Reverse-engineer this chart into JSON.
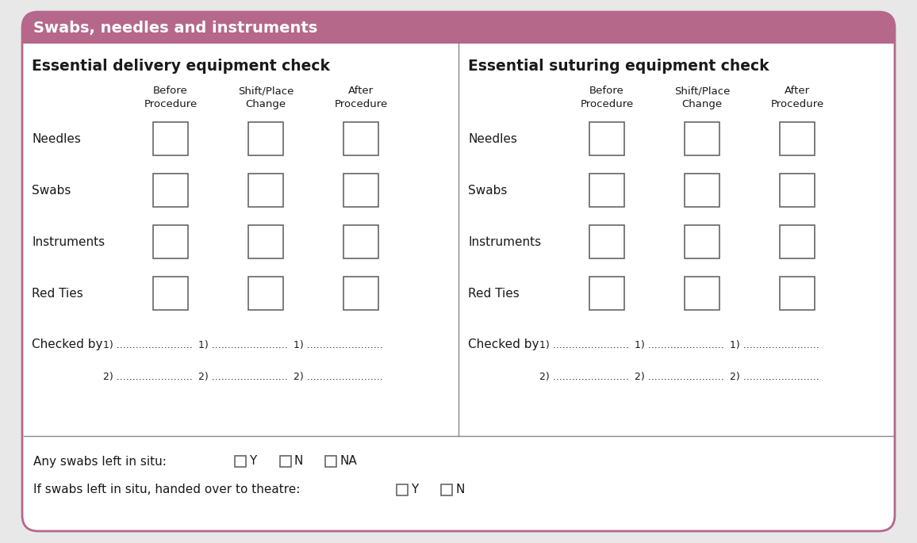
{
  "title": "Swabs, needles and instruments",
  "title_bg": "#b5688a",
  "title_color": "#ffffff",
  "outer_bg": "#ffffff",
  "border_color": "#b5688a",
  "section1_title": "Essential delivery equipment check",
  "section2_title": "Essential suturing equipment check",
  "col_headers": [
    "Before\nProcedure",
    "Shift/Place\nChange",
    "After\nProcedure"
  ],
  "row_labels": [
    "Needles",
    "Swabs",
    "Instruments",
    "Red Ties"
  ],
  "checked_by_label": "Checked by",
  "divider_color": "#888888",
  "box_color": "#ffffff",
  "box_edge": "#666666",
  "text_color": "#1a1a1a",
  "dots": "........................"
}
